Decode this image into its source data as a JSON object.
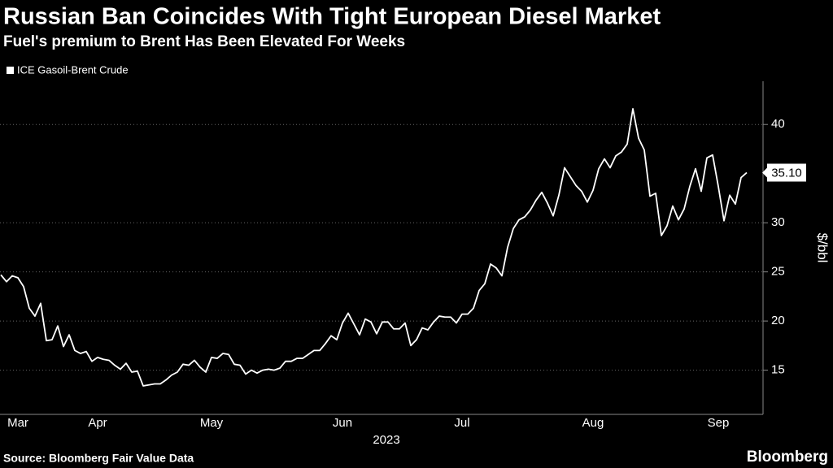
{
  "chart_data": {
    "type": "line",
    "title": "Russian Ban Coincides With Tight European Diesel Market",
    "subtitle": "Fuel's premium to Brent Has Been Elevated For Weeks",
    "y_label": "$/bbl",
    "x_label": "2023",
    "source": "Source: Bloomberg Fair Value Data",
    "brand": "Bloomberg",
    "categories": [
      null,
      null,
      null,
      "Mar",
      null,
      null,
      null,
      null,
      null,
      null,
      null,
      null,
      null,
      null,
      null,
      null,
      null,
      "Apr",
      null,
      null,
      null,
      null,
      null,
      null,
      null,
      null,
      null,
      null,
      null,
      null,
      null,
      null,
      null,
      null,
      null,
      null,
      null,
      "May",
      null,
      null,
      null,
      null,
      null,
      null,
      null,
      null,
      null,
      null,
      null,
      null,
      null,
      null,
      null,
      null,
      null,
      null,
      null,
      null,
      null,
      null,
      "Jun",
      null,
      null,
      null,
      null,
      null,
      null,
      null,
      null,
      null,
      null,
      null,
      null,
      null,
      null,
      null,
      null,
      null,
      null,
      null,
      null,
      "Jul",
      null,
      null,
      null,
      null,
      null,
      null,
      null,
      null,
      null,
      null,
      null,
      null,
      null,
      null,
      null,
      null,
      null,
      null,
      null,
      null,
      null,
      null,
      "Aug",
      null,
      null,
      null,
      null,
      null,
      null,
      null,
      null,
      null,
      null,
      null,
      null,
      null,
      null,
      null,
      null,
      null,
      null,
      null,
      null,
      null,
      "Sep",
      null,
      null,
      null,
      null,
      null
    ],
    "series": [
      {
        "name": "ICE Gasoil-Brent Crude",
        "color": "#ffffff",
        "values": [
          24.7,
          24.0,
          24.6,
          24.4,
          23.5,
          21.3,
          20.5,
          21.8,
          18.0,
          18.1,
          19.5,
          17.4,
          18.6,
          17.0,
          16.7,
          16.9,
          15.9,
          16.3,
          16.1,
          16.0,
          15.5,
          15.1,
          15.7,
          14.8,
          14.9,
          13.4,
          13.5,
          13.6,
          13.6,
          14.0,
          14.5,
          14.8,
          15.6,
          15.5,
          16.0,
          15.3,
          14.8,
          16.3,
          16.2,
          16.7,
          16.6,
          15.6,
          15.5,
          14.6,
          15.0,
          14.7,
          15.0,
          15.1,
          15.0,
          15.2,
          15.9,
          15.9,
          16.2,
          16.2,
          16.6,
          17.0,
          17.0,
          17.7,
          18.5,
          18.1,
          19.8,
          20.8,
          19.7,
          18.6,
          20.2,
          19.9,
          18.7,
          19.9,
          19.9,
          19.2,
          19.2,
          19.8,
          17.5,
          18.1,
          19.3,
          19.1,
          19.9,
          20.5,
          20.4,
          20.4,
          19.8,
          20.7,
          20.7,
          21.3,
          23.1,
          23.8,
          25.8,
          25.4,
          24.6,
          27.5,
          29.4,
          30.3,
          30.6,
          31.3,
          32.3,
          33.1,
          32.0,
          30.7,
          32.8,
          35.6,
          34.7,
          33.8,
          33.2,
          32.1,
          33.3,
          35.5,
          36.5,
          35.6,
          36.8,
          37.2,
          38.0,
          41.6,
          38.6,
          37.4,
          32.7,
          33.0,
          28.7,
          29.7,
          31.7,
          30.3,
          31.4,
          33.7,
          35.5,
          33.2,
          36.6,
          36.9,
          33.7,
          30.2,
          32.8,
          31.9,
          34.6,
          35.1
        ],
        "value_labels": [
          null,
          null,
          null,
          null,
          null,
          null,
          null,
          null,
          null,
          null,
          null,
          null,
          null,
          null,
          null,
          null,
          null,
          null,
          null,
          null,
          null,
          null,
          null,
          null,
          null,
          null,
          null,
          null,
          null,
          null,
          null,
          null,
          null,
          null,
          null,
          null,
          null,
          null,
          null,
          null,
          null,
          null,
          null,
          null,
          null,
          null,
          null,
          null,
          null,
          null,
          null,
          null,
          null,
          null,
          null,
          null,
          null,
          null,
          null,
          null,
          null,
          null,
          null,
          null,
          null,
          null,
          null,
          null,
          null,
          null,
          null,
          null,
          null,
          null,
          null,
          null,
          null,
          null,
          null,
          null,
          null,
          null,
          null,
          null,
          null,
          null,
          null,
          null,
          null,
          null,
          null,
          null,
          null,
          null,
          null,
          null,
          null,
          null,
          null,
          null,
          null,
          null,
          null,
          null,
          null,
          null,
          null,
          null,
          null,
          null,
          null,
          null,
          null,
          null,
          null,
          null,
          null,
          null,
          null,
          null,
          null,
          null,
          null,
          null,
          null,
          null,
          null,
          null,
          null,
          null,
          null,
          "35.10"
        ]
      }
    ],
    "ylim": [
      10.5,
      44.4
    ],
    "yticks": [
      15,
      20,
      25,
      30,
      40
    ],
    "grid": true
  }
}
